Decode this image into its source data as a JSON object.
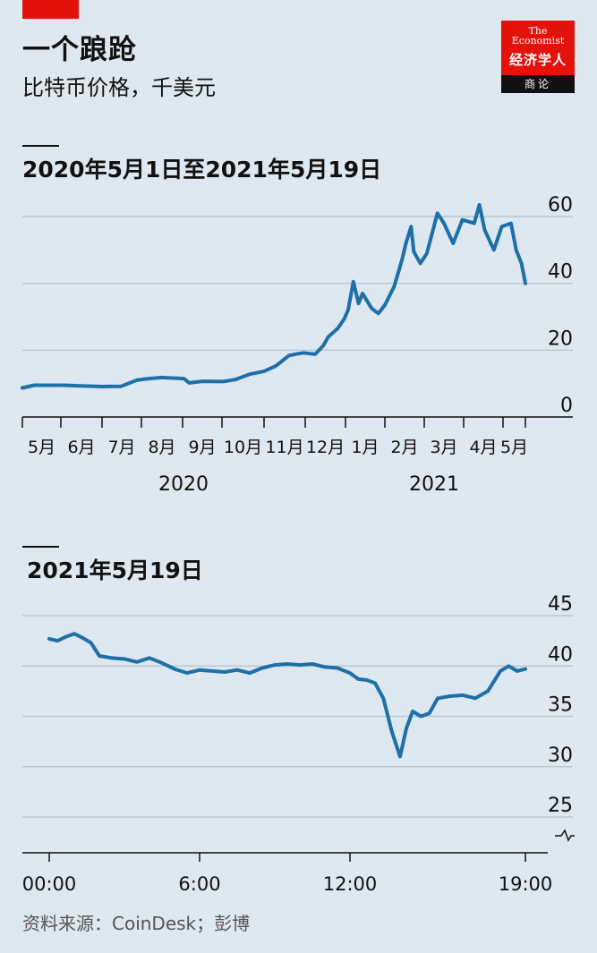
{
  "header": {
    "title": "一个踉跄",
    "subtitle": "比特币价格，千美元"
  },
  "logo": {
    "line1": "The",
    "line2": "Economist",
    "line3": "经济学人",
    "line4": "商论"
  },
  "footer": {
    "source": "资料来源：CoinDesk；彭博"
  },
  "colors": {
    "background": "#dde8f0",
    "line": "#1f6fa8",
    "grid": "#b3c2cc",
    "accent": "#e3120b"
  },
  "chart_data": [
    {
      "type": "line",
      "title": "2020年5月1日至2021年5月19日",
      "y_ticks": [
        "60",
        "40",
        "20",
        "0"
      ],
      "ylim": [
        0,
        60
      ],
      "x_ticks": [
        "5月",
        "6月",
        "7月",
        "8月",
        "9月",
        "10月",
        "11月",
        "12月",
        "1月",
        "2月",
        "3月",
        "4月",
        "5月"
      ],
      "year_labels": [
        "2020",
        "2021"
      ],
      "grid": true,
      "x": [
        "2020-05-01",
        "2020-05-10",
        "2020-05-20",
        "2020-06-01",
        "2020-06-15",
        "2020-07-01",
        "2020-07-15",
        "2020-07-27",
        "2020-08-01",
        "2020-08-15",
        "2020-09-01",
        "2020-09-05",
        "2020-09-15",
        "2020-10-01",
        "2020-10-10",
        "2020-10-21",
        "2020-11-01",
        "2020-11-10",
        "2020-11-20",
        "2020-11-25",
        "2020-12-01",
        "2020-12-10",
        "2020-12-16",
        "2020-12-20",
        "2020-12-27",
        "2021-01-01",
        "2021-01-04",
        "2021-01-08",
        "2021-01-12",
        "2021-01-15",
        "2021-01-22",
        "2021-01-27",
        "2021-02-01",
        "2021-02-08",
        "2021-02-14",
        "2021-02-17",
        "2021-02-21",
        "2021-02-23",
        "2021-02-28",
        "2021-03-05",
        "2021-03-13",
        "2021-03-18",
        "2021-03-25",
        "2021-04-01",
        "2021-04-10",
        "2021-04-14",
        "2021-04-18",
        "2021-04-25",
        "2021-05-01",
        "2021-05-08",
        "2021-05-12",
        "2021-05-16",
        "2021-05-19"
      ],
      "series": [
        {
          "values": [
            8.7,
            9.5,
            9.5,
            9.5,
            9.3,
            9.1,
            9.2,
            11.0,
            11.3,
            11.8,
            11.5,
            10.2,
            10.7,
            10.6,
            11.2,
            12.8,
            13.7,
            15.3,
            18.4,
            18.8,
            19.2,
            18.8,
            21.3,
            24.0,
            26.5,
            29.3,
            32.0,
            40.5,
            34.0,
            37.0,
            32.5,
            31.0,
            33.5,
            39.0,
            47.0,
            52.0,
            57.0,
            49.5,
            46.0,
            49.0,
            61.0,
            58.0,
            52.0,
            59.0,
            58.0,
            63.5,
            56.0,
            50.0,
            57.0,
            58.0,
            50.0,
            46.0,
            40.0
          ]
        }
      ]
    },
    {
      "type": "line",
      "title": "2021年5月19日",
      "y_ticks": [
        "45",
        "40",
        "35",
        "30",
        "25"
      ],
      "ylim": [
        25,
        45
      ],
      "x_ticks": [
        "00:00",
        "6:00",
        "12:00",
        "19:00"
      ],
      "grid": true,
      "x": [
        "00:00",
        "00:20",
        "00:40",
        "01:00",
        "01:20",
        "01:40",
        "02:00",
        "02:30",
        "03:00",
        "03:30",
        "04:00",
        "04:30",
        "05:00",
        "05:30",
        "06:00",
        "06:30",
        "07:00",
        "07:30",
        "08:00",
        "08:30",
        "09:00",
        "09:30",
        "10:00",
        "10:30",
        "11:00",
        "11:30",
        "12:00",
        "12:20",
        "12:40",
        "13:00",
        "13:20",
        "13:40",
        "14:00",
        "14:15",
        "14:30",
        "14:50",
        "15:10",
        "15:30",
        "16:00",
        "16:30",
        "17:00",
        "17:30",
        "18:00",
        "18:20",
        "18:40",
        "19:00"
      ],
      "series": [
        {
          "values": [
            42.7,
            42.5,
            42.9,
            43.2,
            42.8,
            42.3,
            41.0,
            40.8,
            40.7,
            40.4,
            40.8,
            40.3,
            39.7,
            39.3,
            39.6,
            39.5,
            39.4,
            39.6,
            39.3,
            39.8,
            40.1,
            40.2,
            40.1,
            40.2,
            39.9,
            39.8,
            39.3,
            38.7,
            38.6,
            38.3,
            36.8,
            33.5,
            31.0,
            33.8,
            35.5,
            35.0,
            35.3,
            36.8,
            37.0,
            37.1,
            36.8,
            37.5,
            39.5,
            40.0,
            39.5,
            39.7
          ]
        }
      ]
    }
  ]
}
